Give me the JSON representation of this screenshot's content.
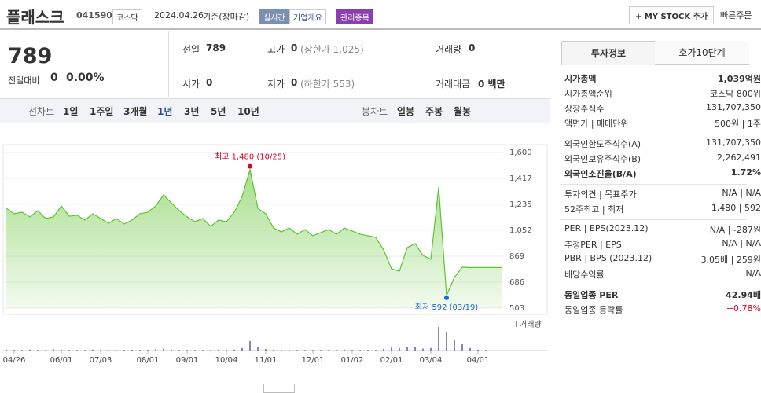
{
  "header": {
    "name": "플래스크",
    "code": "041590",
    "market": "코스닥",
    "date": "2024.04.26",
    "basis": "기준(장마감)",
    "badges": [
      "실시간",
      "기업개요",
      "관리종목"
    ],
    "my_stock": "+ MY STOCK 추가",
    "quick_order": "빠른주문"
  },
  "price": {
    "current": "789",
    "change_label": "전일대비",
    "change": "0",
    "rate": "0.00%"
  },
  "summary": [
    [
      {
        "label": "전일",
        "value": "789"
      },
      {
        "label": "고가",
        "value": "0",
        "note": "(상한가 1,025)"
      },
      {
        "label": "거래량",
        "value": "0"
      }
    ],
    [
      {
        "label": "시가",
        "value": "0"
      },
      {
        "label": "저가",
        "value": "0",
        "note": "(하한가 553)"
      },
      {
        "label": "거래대금",
        "value": "0 백만"
      }
    ]
  ],
  "tabs": {
    "line_label": "선차트",
    "line": [
      "1일",
      "1주일",
      "3개월",
      "1년",
      "3년",
      "5년",
      "10년"
    ],
    "candle_label": "봉차트",
    "candle": [
      "일봉",
      "주봉",
      "월봉"
    ]
  },
  "chart_data": {
    "type": "line",
    "ylim": [
      503,
      1600
    ],
    "yticks": [
      {
        "value": 1600,
        "label": "1,600"
      },
      {
        "value": 1417,
        "label": "1,417"
      },
      {
        "value": 1235,
        "label": "1,235"
      },
      {
        "value": 1052,
        "label": "1,052"
      },
      869,
      686,
      503
    ],
    "xlim": [
      0,
      63
    ],
    "xticks": [
      {
        "value": 1,
        "label": "04/26"
      },
      {
        "value": 7,
        "label": "06/01"
      },
      {
        "value": 12,
        "label": "07/03"
      },
      {
        "value": 18,
        "label": "08/01"
      },
      {
        "value": 23,
        "label": "09/01"
      },
      {
        "value": 28,
        "label": "10/04"
      },
      {
        "value": 33,
        "label": "11/01"
      },
      {
        "value": 39,
        "label": "12/01"
      },
      {
        "value": 44,
        "label": "01/02"
      },
      {
        "value": 49,
        "label": "02/01"
      },
      {
        "value": 54,
        "label": "03/04"
      },
      {
        "value": 60,
        "label": "04/01"
      }
    ],
    "series": [
      {
        "color": "#5ec42f",
        "values": [
          1207,
          1168,
          1179,
          1146,
          1190,
          1135,
          1146,
          1223,
          1151,
          1157,
          1124,
          1168,
          1135,
          1101,
          1135,
          1096,
          1124,
          1168,
          1179,
          1223,
          1301,
          1245,
          1190,
          1146,
          1112,
          1135,
          1079,
          1124,
          1112,
          1179,
          1290,
          1480,
          1207,
          1168,
          1068,
          1040,
          1068,
          1024,
          1057,
          1013,
          1035,
          1057,
          1024,
          1068,
          1046,
          1024,
          1013,
          1002,
          913,
          780,
          763,
          930,
          957,
          874,
          847,
          1356,
          592,
          720,
          791,
          789,
          789,
          789,
          789,
          789
        ]
      }
    ],
    "annotations": [
      "최고 1,480 (10/25)",
      "최저 592 (03/19)"
    ],
    "volume": {
      "name": "거래량",
      "ylim": [
        0,
        100
      ],
      "color": "#8a8aa8",
      "values": [
        3,
        2,
        2,
        3,
        2,
        2,
        4,
        3,
        2,
        2,
        2,
        3,
        2,
        2,
        2,
        2,
        3,
        2,
        2,
        4,
        6,
        3,
        2,
        2,
        2,
        2,
        2,
        3,
        2,
        3,
        8,
        30,
        10,
        5,
        3,
        2,
        2,
        2,
        2,
        2,
        2,
        2,
        2,
        3,
        2,
        2,
        2,
        2,
        6,
        12,
        8,
        10,
        12,
        6,
        8,
        75,
        60,
        35,
        20,
        8,
        3,
        2,
        0,
        0
      ]
    }
  },
  "info": {
    "tabs": [
      "투자정보",
      "호가10단계"
    ],
    "sections": [
      [
        {
          "label": "시가총액",
          "value": "1,039억원"
        },
        {
          "label": "시가총액순위",
          "value": "코스닥 800위"
        },
        {
          "label": "상장주식수",
          "value": "131,707,350"
        },
        {
          "label": "액면가 | 매매단위",
          "value": "500원 | 1주"
        }
      ],
      [
        {
          "label": "외국인한도주식수(A)",
          "value": "131,707,350"
        },
        {
          "label": "외국인보유주식수(B)",
          "value": "2,262,491"
        },
        {
          "label": "외국인소진율(B/A)",
          "value": "1.72%"
        }
      ],
      [
        {
          "label": "투자의견 | 목표주가",
          "value": "N/A | N/A"
        },
        {
          "label": "52주최고 | 최저",
          "value": "1,480 | 592"
        }
      ],
      [
        {
          "label": "PER | EPS(2023.12)",
          "value": "N/A | -287원"
        },
        {
          "label": "추정PER | EPS",
          "value": "N/A | N/A"
        },
        {
          "label": "PBR | BPS (2023.12)",
          "value": "3.05배 | 259원"
        },
        {
          "label": "배당수익률",
          "value": "N/A"
        }
      ],
      [
        {
          "label": "동일업종 PER",
          "value": "42.94배"
        },
        {
          "label": "동일업종 등락률",
          "value": "+0.78%"
        }
      ]
    ]
  }
}
